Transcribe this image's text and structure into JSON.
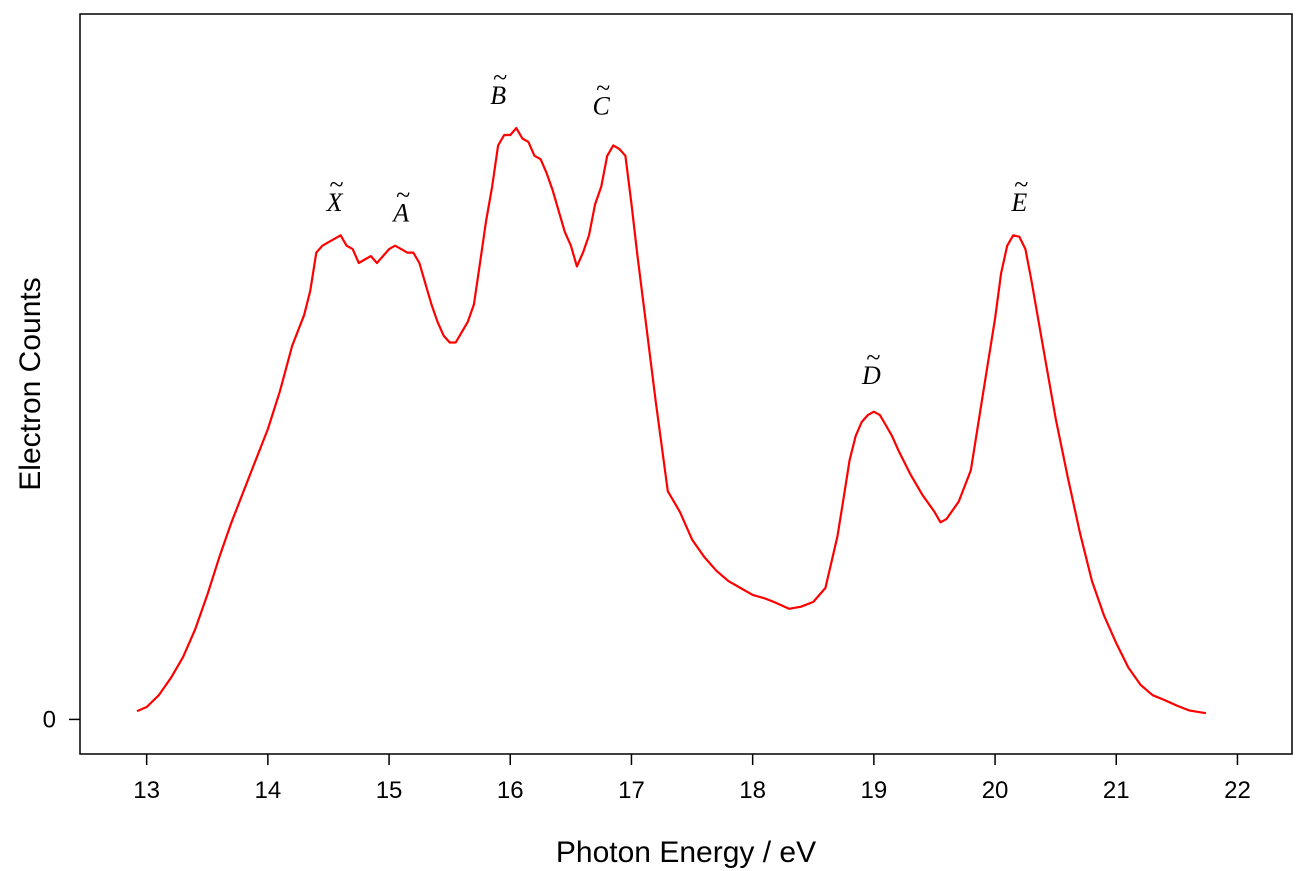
{
  "chart_data": {
    "type": "line",
    "title": "",
    "xlabel": "Photon Energy / eV",
    "ylabel": "Electron Counts",
    "xlim": [
      12.45,
      22.45
    ],
    "ylim": [
      -0.05,
      1.02
    ],
    "grid": false,
    "x_ticks": [
      13,
      14,
      15,
      16,
      17,
      18,
      19,
      20,
      21,
      22
    ],
    "x_tick_labels": [
      "13",
      "14",
      "15",
      "16",
      "17",
      "18",
      "19",
      "20",
      "21",
      "22"
    ],
    "y_ticks": [
      0
    ],
    "y_tick_labels": [
      "0"
    ],
    "series": [
      {
        "color": "#ff0000",
        "points": [
          [
            12.92,
            0.012
          ],
          [
            13.0,
            0.018
          ],
          [
            13.1,
            0.035
          ],
          [
            13.2,
            0.06
          ],
          [
            13.3,
            0.09
          ],
          [
            13.4,
            0.13
          ],
          [
            13.5,
            0.18
          ],
          [
            13.6,
            0.235
          ],
          [
            13.7,
            0.285
          ],
          [
            13.8,
            0.33
          ],
          [
            13.9,
            0.375
          ],
          [
            14.0,
            0.42
          ],
          [
            14.1,
            0.475
          ],
          [
            14.2,
            0.54
          ],
          [
            14.3,
            0.585
          ],
          [
            14.35,
            0.62
          ],
          [
            14.4,
            0.675
          ],
          [
            14.45,
            0.685
          ],
          [
            14.5,
            0.69
          ],
          [
            14.55,
            0.695
          ],
          [
            14.6,
            0.7
          ],
          [
            14.65,
            0.685
          ],
          [
            14.7,
            0.68
          ],
          [
            14.75,
            0.66
          ],
          [
            14.8,
            0.665
          ],
          [
            14.85,
            0.67
          ],
          [
            14.9,
            0.66
          ],
          [
            14.95,
            0.67
          ],
          [
            15.0,
            0.68
          ],
          [
            15.05,
            0.685
          ],
          [
            15.1,
            0.68
          ],
          [
            15.15,
            0.675
          ],
          [
            15.2,
            0.675
          ],
          [
            15.25,
            0.66
          ],
          [
            15.3,
            0.63
          ],
          [
            15.35,
            0.6
          ],
          [
            15.4,
            0.575
          ],
          [
            15.45,
            0.555
          ],
          [
            15.5,
            0.545
          ],
          [
            15.55,
            0.545
          ],
          [
            15.6,
            0.56
          ],
          [
            15.65,
            0.575
          ],
          [
            15.7,
            0.6
          ],
          [
            15.75,
            0.66
          ],
          [
            15.8,
            0.72
          ],
          [
            15.85,
            0.77
          ],
          [
            15.9,
            0.83
          ],
          [
            15.95,
            0.845
          ],
          [
            16.0,
            0.845
          ],
          [
            16.05,
            0.855
          ],
          [
            16.1,
            0.84
          ],
          [
            16.15,
            0.835
          ],
          [
            16.2,
            0.815
          ],
          [
            16.25,
            0.81
          ],
          [
            16.3,
            0.79
          ],
          [
            16.35,
            0.765
          ],
          [
            16.4,
            0.735
          ],
          [
            16.45,
            0.705
          ],
          [
            16.5,
            0.685
          ],
          [
            16.55,
            0.655
          ],
          [
            16.6,
            0.675
          ],
          [
            16.65,
            0.7
          ],
          [
            16.7,
            0.745
          ],
          [
            16.75,
            0.77
          ],
          [
            16.8,
            0.815
          ],
          [
            16.85,
            0.83
          ],
          [
            16.9,
            0.825
          ],
          [
            16.95,
            0.815
          ],
          [
            17.0,
            0.745
          ],
          [
            17.05,
            0.67
          ],
          [
            17.1,
            0.6
          ],
          [
            17.2,
            0.46
          ],
          [
            17.3,
            0.33
          ],
          [
            17.4,
            0.3
          ],
          [
            17.5,
            0.26
          ],
          [
            17.6,
            0.235
          ],
          [
            17.7,
            0.215
          ],
          [
            17.8,
            0.2
          ],
          [
            17.9,
            0.19
          ],
          [
            18.0,
            0.18
          ],
          [
            18.1,
            0.175
          ],
          [
            18.2,
            0.168
          ],
          [
            18.3,
            0.16
          ],
          [
            18.4,
            0.163
          ],
          [
            18.5,
            0.17
          ],
          [
            18.6,
            0.19
          ],
          [
            18.7,
            0.265
          ],
          [
            18.75,
            0.32
          ],
          [
            18.8,
            0.375
          ],
          [
            18.85,
            0.41
          ],
          [
            18.9,
            0.43
          ],
          [
            18.95,
            0.44
          ],
          [
            19.0,
            0.445
          ],
          [
            19.05,
            0.44
          ],
          [
            19.1,
            0.425
          ],
          [
            19.15,
            0.41
          ],
          [
            19.2,
            0.39
          ],
          [
            19.3,
            0.355
          ],
          [
            19.4,
            0.325
          ],
          [
            19.5,
            0.3
          ],
          [
            19.55,
            0.285
          ],
          [
            19.6,
            0.29
          ],
          [
            19.7,
            0.315
          ],
          [
            19.8,
            0.36
          ],
          [
            19.9,
            0.47
          ],
          [
            20.0,
            0.58
          ],
          [
            20.05,
            0.645
          ],
          [
            20.1,
            0.685
          ],
          [
            20.15,
            0.7
          ],
          [
            20.2,
            0.698
          ],
          [
            20.25,
            0.68
          ],
          [
            20.3,
            0.635
          ],
          [
            20.4,
            0.535
          ],
          [
            20.5,
            0.435
          ],
          [
            20.6,
            0.35
          ],
          [
            20.7,
            0.27
          ],
          [
            20.8,
            0.2
          ],
          [
            20.9,
            0.15
          ],
          [
            21.0,
            0.11
          ],
          [
            21.1,
            0.075
          ],
          [
            21.2,
            0.05
          ],
          [
            21.3,
            0.035
          ],
          [
            21.4,
            0.028
          ],
          [
            21.5,
            0.02
          ],
          [
            21.6,
            0.013
          ],
          [
            21.74,
            0.009
          ]
        ]
      }
    ],
    "annotations": [
      {
        "text": "X",
        "x": 14.55,
        "y": 0.735
      },
      {
        "text": "A",
        "x": 15.1,
        "y": 0.72
      },
      {
        "text": "B",
        "x": 15.9,
        "y": 0.89
      },
      {
        "text": "C",
        "x": 16.75,
        "y": 0.875
      },
      {
        "text": "D",
        "x": 18.98,
        "y": 0.485
      },
      {
        "text": "E",
        "x": 20.2,
        "y": 0.735
      }
    ]
  }
}
